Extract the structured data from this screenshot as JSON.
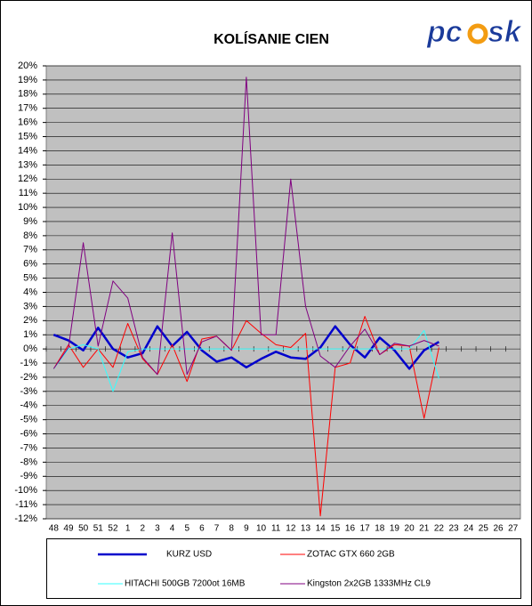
{
  "logo": {
    "left": "pc",
    "right": "sk"
  },
  "chart_data": {
    "type": "line",
    "title": "KOLÍSANIE CIEN",
    "categories": [
      "48",
      "49",
      "50",
      "51",
      "52",
      "1",
      "2",
      "3",
      "4",
      "5",
      "6",
      "7",
      "8",
      "9",
      "10",
      "11",
      "12",
      "13",
      "14",
      "15",
      "16",
      "17",
      "18",
      "19",
      "20",
      "21",
      "22",
      "23",
      "24",
      "25",
      "26",
      "27"
    ],
    "series": [
      {
        "name": "KURZ USD",
        "color": "#0000cc",
        "values": [
          1.0,
          0.6,
          -0.1,
          1.5,
          0.0,
          -0.6,
          -0.3,
          1.6,
          0.2,
          1.2,
          -0.1,
          -0.9,
          -0.6,
          -1.3,
          -0.7,
          -0.2,
          -0.6,
          -0.7,
          0.1,
          1.6,
          0.3,
          -0.6,
          0.8,
          -0.1,
          -1.4,
          -0.1,
          0.5,
          null,
          null,
          null,
          null,
          null
        ]
      },
      {
        "name": "ZOTAC GTX 660 2GB",
        "color": "#ff0000",
        "values": [
          -1.4,
          0.3,
          -1.3,
          0.0,
          -1.3,
          1.8,
          -0.7,
          -1.8,
          0.3,
          -2.3,
          0.7,
          0.9,
          -0.1,
          2.0,
          1.1,
          0.3,
          0.1,
          1.1,
          -11.8,
          -1.3,
          -1.0,
          2.3,
          -0.4,
          0.3,
          0.2,
          -4.9,
          0.1,
          null,
          null,
          null,
          null,
          null
        ]
      },
      {
        "name": "HITACHI 500GB 7200ot 16MB",
        "color": "#33ffff",
        "values": [
          -1.4,
          0.0,
          0.3,
          0.0,
          -3.0,
          -0.2,
          0.0,
          0.0,
          0.0,
          0.0,
          0.0,
          0.0,
          0.0,
          0.0,
          0.0,
          0.0,
          0.0,
          0.0,
          0.0,
          0.0,
          0.0,
          0.0,
          0.0,
          0.0,
          0.0,
          1.3,
          -2.1,
          null,
          null,
          null,
          null,
          null
        ]
      },
      {
        "name": "Kingston 2x2GB 1333MHz CL9",
        "color": "#800080",
        "values": [
          -1.4,
          0.1,
          7.5,
          0.2,
          4.8,
          3.6,
          -0.6,
          -1.8,
          8.2,
          -1.8,
          0.5,
          0.9,
          -0.1,
          19.2,
          1.0,
          1.0,
          12.0,
          3.0,
          -0.5,
          -1.3,
          0.2,
          1.4,
          -0.4,
          0.4,
          0.2,
          0.6,
          0.2,
          null,
          null,
          null,
          null,
          null
        ]
      }
    ],
    "ylim": [
      -12,
      20
    ],
    "yticks": [
      {
        "value": -12,
        "label": "-12%"
      },
      {
        "value": -11,
        "label": "-11%"
      },
      {
        "value": -10,
        "label": "-10%"
      },
      {
        "value": -9,
        "label": "-9%"
      },
      {
        "value": -8,
        "label": "-8%"
      },
      {
        "value": -7,
        "label": "-7%"
      },
      {
        "value": -6,
        "label": "-6%"
      },
      {
        "value": -5,
        "label": "-5%"
      },
      {
        "value": -4,
        "label": "-4%"
      },
      {
        "value": -3,
        "label": "-3%"
      },
      {
        "value": -2,
        "label": "-2%"
      },
      {
        "value": -1,
        "label": "-1%"
      },
      {
        "value": 0,
        "label": "0%"
      },
      {
        "value": 1,
        "label": "1%"
      },
      {
        "value": 2,
        "label": "2%"
      },
      {
        "value": 3,
        "label": "3%"
      },
      {
        "value": 4,
        "label": "4%"
      },
      {
        "value": 5,
        "label": "5%"
      },
      {
        "value": 6,
        "label": "6%"
      },
      {
        "value": 7,
        "label": "7%"
      },
      {
        "value": 8,
        "label": "8%"
      },
      {
        "value": 9,
        "label": "9%"
      },
      {
        "value": 10,
        "label": "10%"
      },
      {
        "value": 11,
        "label": "11%"
      },
      {
        "value": 12,
        "label": "12%"
      },
      {
        "value": 13,
        "label": "13%"
      },
      {
        "value": 14,
        "label": "14%"
      },
      {
        "value": 15,
        "label": "15%"
      },
      {
        "value": 16,
        "label": "16%"
      },
      {
        "value": 17,
        "label": "17%"
      },
      {
        "value": 18,
        "label": "18%"
      },
      {
        "value": 19,
        "label": "19%"
      },
      {
        "value": 20,
        "label": "20%"
      }
    ],
    "grid": true,
    "legend": "bottom"
  }
}
